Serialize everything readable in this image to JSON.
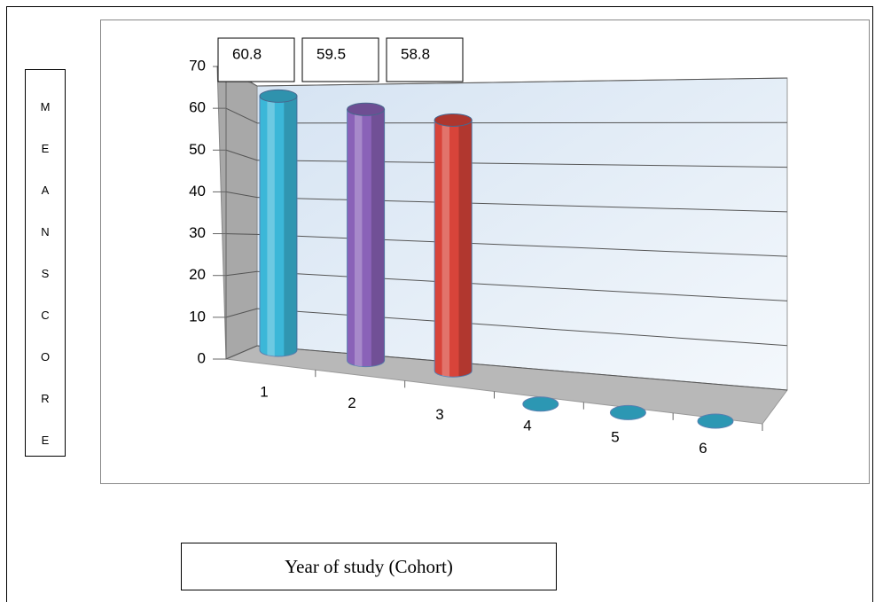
{
  "chart_data": {
    "type": "bar3d",
    "y_label": "MEANSCORE",
    "x_label": "Year of study (Cohort)",
    "categories": [
      "1",
      "2",
      "3",
      "4",
      "5",
      "6"
    ],
    "values": [
      60.8,
      59.5,
      58.8,
      0,
      0,
      0
    ],
    "colors": [
      "#3bb7d8",
      "#8a62b8",
      "#d8443a",
      "#2c97b3",
      "#2c97b3",
      "#2c97b3"
    ],
    "ylim": [
      0,
      70
    ],
    "yticks": [
      0,
      10,
      20,
      30,
      40,
      50,
      60,
      70
    ],
    "grid": true
  }
}
